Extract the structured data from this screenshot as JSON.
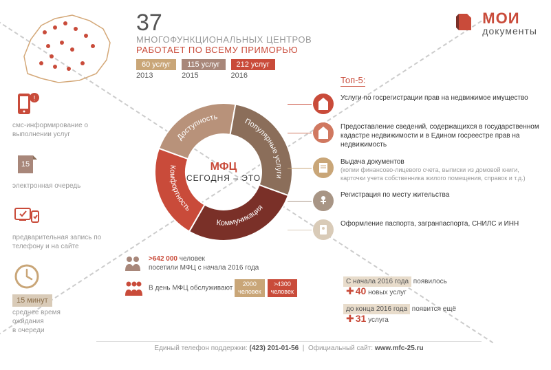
{
  "header": {
    "number": "37",
    "line1": "МНОГОФУНКЦИОНАЛЬНЫХ ЦЕНТРОВ",
    "line2": "РАБОТАЕТ ПО ВСЕМУ ПРИМОРЬЮ"
  },
  "logo": {
    "main": "МОИ",
    "sub": "документы"
  },
  "tags": [
    {
      "label": "60 услуг",
      "year": "2013",
      "bg": "#c9a678"
    },
    {
      "label": "115 услуг",
      "year": "2015",
      "bg": "#a8877a"
    },
    {
      "label": "212 услуг",
      "year": "2016",
      "bg": "#c94b3a"
    }
  ],
  "donut": {
    "center_t1": "МФЦ",
    "center_t2": "СЕГОДНЯ – ЭТО",
    "slices": [
      {
        "label": "Доступность",
        "color": "#b8927a",
        "start": -70,
        "end": 10
      },
      {
        "label": "Популярные услуги",
        "color": "#8b6e5a",
        "start": 10,
        "end": 110
      },
      {
        "label": "Коммуникация",
        "color": "#7a3028",
        "start": 110,
        "end": 210
      },
      {
        "label": "Комфортность",
        "color": "#c94b3a",
        "start": 210,
        "end": 290
      }
    ],
    "inner_r": 55,
    "outer_r": 100
  },
  "left_services": [
    {
      "icon": "phone-sms",
      "text": "смс-информирование о выполнении услуг",
      "color": "#c94b3a"
    },
    {
      "icon": "ticket",
      "text": "электронная очередь",
      "color": "#a8877a",
      "badge": "15"
    },
    {
      "icon": "devices",
      "text": "предварительная запись по телефону и на сайте",
      "color": "#c94b3a"
    }
  ],
  "wait": {
    "band": "15 минут",
    "line1": "среднее время",
    "line2": "ожидания",
    "line3": "в очереди"
  },
  "top5_title": "Топ-5:",
  "top5": [
    {
      "color": "#c94b3a",
      "main": "Услуги по госрегистрации прав на недвижимое имущество"
    },
    {
      "color": "#d07860",
      "main": "Предоставление сведений, содержащихся в государственном кадастре недвижимости и в Едином госреестре прав на недвижимость"
    },
    {
      "color": "#c9a678",
      "main": "Выдача документов",
      "sub": "(копии финансово-лицевого счета, выписки из домовой книги, карточки учета собственника жилого помещения, справок и т.д.)"
    },
    {
      "color": "#a89585",
      "main": "Регистрация по месту жительства"
    },
    {
      "color": "#d9cbb8",
      "main": "Оформление паспорта, загранпаспорта, СНИЛС и ИНН"
    }
  ],
  "bottom_stats": {
    "visitors_num": ">642 000",
    "visitors_unit": "человек",
    "visitors_text": "посетили МФЦ с начала 2016 года",
    "daily_text": "В день МФЦ обслуживают",
    "daily_2000": {
      "n": "2000",
      "u": "человек",
      "bg": "#c9a678"
    },
    "daily_4300": {
      "n": ">4300",
      "u": "человек",
      "bg": "#c94b3a"
    }
  },
  "right_stats": [
    {
      "band": "С начала 2016 года",
      "tail": "появилось",
      "num": "40",
      "unit": "новых услуг"
    },
    {
      "band": "до конца 2016 года",
      "tail": "появится ещё",
      "num": "31",
      "unit": "услуга"
    }
  ],
  "footer": {
    "phone_label": "Единый телефон поддержки:",
    "phone": "(423) 201-01-56",
    "site_label": "Официальный сайт:",
    "site": "www.mfc-25.ru"
  },
  "colors": {
    "primary": "#c94b3a",
    "tan": "#c9a678",
    "brown": "#a8877a",
    "dark": "#7a3028"
  }
}
